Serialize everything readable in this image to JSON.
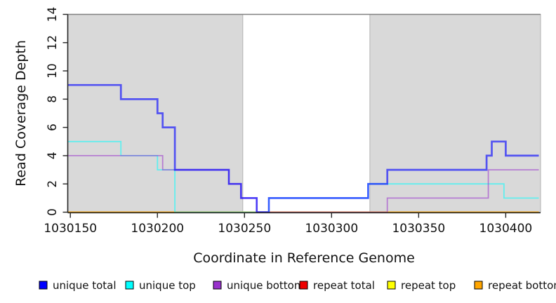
{
  "chart_data": {
    "type": "line",
    "subtype": "step-coverage",
    "xlabel": "Coordinate in Reference Genome",
    "ylabel": "Read Coverage Depth",
    "xlim": [
      1030148.5,
      1030420
    ],
    "ylim": [
      0,
      14
    ],
    "grid": false,
    "background_color": "#ffffff",
    "shade_color": "#d9d9d9",
    "shade_border_color": "#b2b2b2",
    "top_rule_color": "#808080",
    "axis_color": "#262626",
    "shaded_regions": [
      [
        1030148.5,
        1030249
      ],
      [
        1030322,
        1030420
      ]
    ],
    "x_ticks": [
      {
        "value": 1030150,
        "label": "1030150"
      },
      {
        "value": 1030200,
        "label": "1030200"
      },
      {
        "value": 1030250,
        "label": "1030250"
      },
      {
        "value": 1030300,
        "label": "1030300"
      },
      {
        "value": 1030350,
        "label": "1030350"
      },
      {
        "value": 1030400,
        "label": "1030400"
      }
    ],
    "y_ticks": [
      {
        "value": 0,
        "label": "0"
      },
      {
        "value": 2,
        "label": "2"
      },
      {
        "value": 4,
        "label": "4"
      },
      {
        "value": 6,
        "label": "6"
      },
      {
        "value": 8,
        "label": "8"
      },
      {
        "value": 10,
        "label": "10"
      },
      {
        "value": 12,
        "label": "12"
      },
      {
        "value": 14,
        "label": "14"
      }
    ],
    "series": [
      {
        "name": "repeat total",
        "color": "#EE0000",
        "line_width": 1.6,
        "opacity": 0.6,
        "steps": [
          [
            1030148.5,
            0
          ],
          [
            1030419,
            0
          ]
        ]
      },
      {
        "name": "repeat top",
        "color": "#FFFF00",
        "line_width": 1.6,
        "opacity": 0.6,
        "steps": [
          [
            1030148.5,
            0
          ],
          [
            1030419,
            0
          ]
        ]
      },
      {
        "name": "repeat bottom",
        "color": "#FFA500",
        "line_width": 2.2,
        "opacity": 0.68,
        "steps": [
          [
            1030148.5,
            0
          ],
          [
            1030419,
            0
          ]
        ]
      },
      {
        "name": "unique top",
        "color": "#00FFFF",
        "line_width": 1.8,
        "opacity": 0.55,
        "steps": [
          [
            1030148.5,
            5
          ],
          [
            1030179,
            4
          ],
          [
            1030200,
            3
          ],
          [
            1030210,
            0
          ],
          [
            1030264,
            1
          ],
          [
            1030321,
            2
          ],
          [
            1030399,
            1
          ],
          [
            1030419,
            1
          ]
        ]
      },
      {
        "name": "unique bottom",
        "color": "#9932CC",
        "line_width": 1.8,
        "opacity": 0.55,
        "steps": [
          [
            1030148.5,
            4
          ],
          [
            1030203,
            3
          ],
          [
            1030241,
            2
          ],
          [
            1030248,
            1
          ],
          [
            1030257,
            0
          ],
          [
            1030332,
            1
          ],
          [
            1030390,
            3
          ],
          [
            1030419,
            3
          ]
        ]
      },
      {
        "name": "unique total",
        "color": "#0000FF",
        "line_width": 2.7,
        "opacity": 0.62,
        "steps": [
          [
            1030148.5,
            9
          ],
          [
            1030179,
            8
          ],
          [
            1030200,
            7
          ],
          [
            1030203,
            6
          ],
          [
            1030210,
            3
          ],
          [
            1030241,
            2
          ],
          [
            1030248,
            1
          ],
          [
            1030257,
            0
          ],
          [
            1030264,
            1
          ],
          [
            1030321,
            2
          ],
          [
            1030332,
            3
          ],
          [
            1030389,
            4
          ],
          [
            1030392,
            5
          ],
          [
            1030400,
            4
          ],
          [
            1030419,
            4
          ]
        ]
      }
    ],
    "legend": {
      "position": "bottom",
      "items": [
        {
          "label": "unique total",
          "color": "#0000FF"
        },
        {
          "label": "unique top",
          "color": "#00FFFF"
        },
        {
          "label": "unique bottom",
          "color": "#9932CC"
        },
        {
          "label": "repeat total",
          "color": "#EE0000"
        },
        {
          "label": "repeat top",
          "color": "#FFFF00"
        },
        {
          "label": "repeat bottom",
          "color": "#FFA500"
        }
      ]
    }
  }
}
